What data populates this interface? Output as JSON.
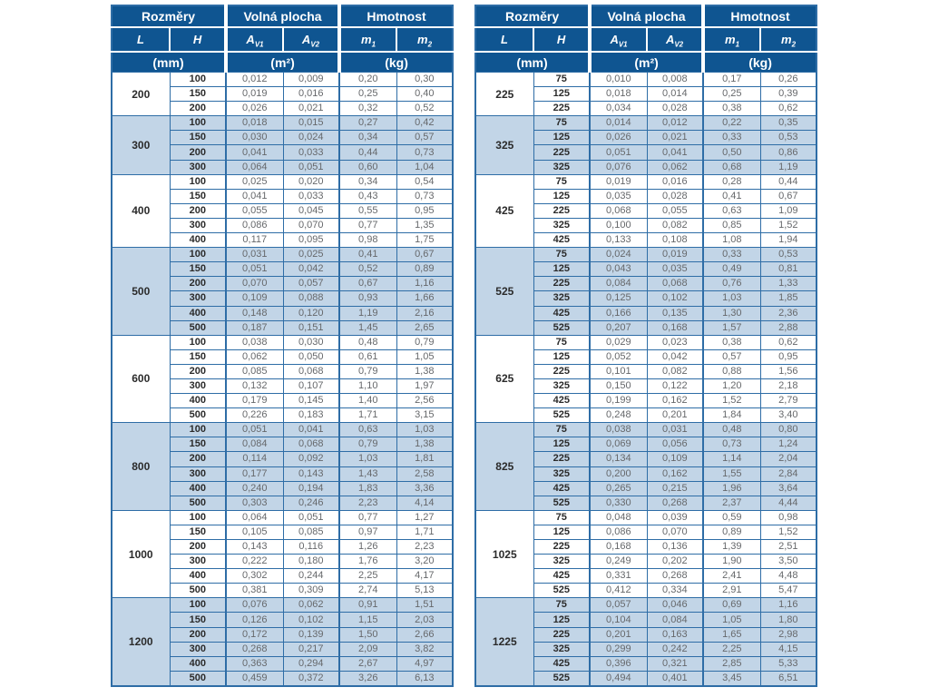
{
  "page": {
    "background": "#ffffff"
  },
  "colors": {
    "header_bg": "#0f5591",
    "band_blue": "#c2d5e7",
    "grid_blue": "#2e6da6",
    "header_text": "#ffffff",
    "value_text": "#66686b",
    "dimension_text": "#2b2b2b"
  },
  "header": {
    "group_dimensions": "Rozměry",
    "group_free_area": "Volná plocha",
    "group_weight": "Hmotnost",
    "col_L": "L",
    "col_H": "H",
    "col_av1": {
      "base": "A",
      "sub": "V1"
    },
    "col_av2": {
      "base": "A",
      "sub": "V2"
    },
    "col_m1": {
      "base": "m",
      "sub": "1"
    },
    "col_m2": {
      "base": "m",
      "sub": "2"
    },
    "unit_mm": "(mm)",
    "unit_m2": "(m²)",
    "unit_kg": "(kg)"
  },
  "tables": [
    {
      "name": "left-table",
      "groups": [
        {
          "L": "200",
          "rows": [
            [
              "100",
              "0,012",
              "0,009",
              "0,20",
              "0,30"
            ],
            [
              "150",
              "0,019",
              "0,016",
              "0,25",
              "0,40"
            ],
            [
              "200",
              "0,026",
              "0,021",
              "0,32",
              "0,52"
            ]
          ]
        },
        {
          "L": "300",
          "rows": [
            [
              "100",
              "0,018",
              "0,015",
              "0,27",
              "0,42"
            ],
            [
              "150",
              "0,030",
              "0,024",
              "0,34",
              "0,57"
            ],
            [
              "200",
              "0,041",
              "0,033",
              "0,44",
              "0,73"
            ],
            [
              "300",
              "0,064",
              "0,051",
              "0,60",
              "1,04"
            ]
          ]
        },
        {
          "L": "400",
          "rows": [
            [
              "100",
              "0,025",
              "0,020",
              "0,34",
              "0,54"
            ],
            [
              "150",
              "0,041",
              "0,033",
              "0,43",
              "0,73"
            ],
            [
              "200",
              "0,055",
              "0,045",
              "0,55",
              "0,95"
            ],
            [
              "300",
              "0,086",
              "0,070",
              "0,77",
              "1,35"
            ],
            [
              "400",
              "0,117",
              "0,095",
              "0,98",
              "1,75"
            ]
          ]
        },
        {
          "L": "500",
          "rows": [
            [
              "100",
              "0,031",
              "0,025",
              "0,41",
              "0,67"
            ],
            [
              "150",
              "0,051",
              "0,042",
              "0,52",
              "0,89"
            ],
            [
              "200",
              "0,070",
              "0,057",
              "0,67",
              "1,16"
            ],
            [
              "300",
              "0,109",
              "0,088",
              "0,93",
              "1,66"
            ],
            [
              "400",
              "0,148",
              "0,120",
              "1,19",
              "2,16"
            ],
            [
              "500",
              "0,187",
              "0,151",
              "1,45",
              "2,65"
            ]
          ]
        },
        {
          "L": "600",
          "rows": [
            [
              "100",
              "0,038",
              "0,030",
              "0,48",
              "0,79"
            ],
            [
              "150",
              "0,062",
              "0,050",
              "0,61",
              "1,05"
            ],
            [
              "200",
              "0,085",
              "0,068",
              "0,79",
              "1,38"
            ],
            [
              "300",
              "0,132",
              "0,107",
              "1,10",
              "1,97"
            ],
            [
              "400",
              "0,179",
              "0,145",
              "1,40",
              "2,56"
            ],
            [
              "500",
              "0,226",
              "0,183",
              "1,71",
              "3,15"
            ]
          ]
        },
        {
          "L": "800",
          "rows": [
            [
              "100",
              "0,051",
              "0,041",
              "0,63",
              "1,03"
            ],
            [
              "150",
              "0,084",
              "0,068",
              "0,79",
              "1,38"
            ],
            [
              "200",
              "0,114",
              "0,092",
              "1,03",
              "1,81"
            ],
            [
              "300",
              "0,177",
              "0,143",
              "1,43",
              "2,58"
            ],
            [
              "400",
              "0,240",
              "0,194",
              "1,83",
              "3,36"
            ],
            [
              "500",
              "0,303",
              "0,246",
              "2,23",
              "4,14"
            ]
          ]
        },
        {
          "L": "1000",
          "rows": [
            [
              "100",
              "0,064",
              "0,051",
              "0,77",
              "1,27"
            ],
            [
              "150",
              "0,105",
              "0,085",
              "0,97",
              "1,71"
            ],
            [
              "200",
              "0,143",
              "0,116",
              "1,26",
              "2,23"
            ],
            [
              "300",
              "0,222",
              "0,180",
              "1,76",
              "3,20"
            ],
            [
              "400",
              "0,302",
              "0,244",
              "2,25",
              "4,17"
            ],
            [
              "500",
              "0,381",
              "0,309",
              "2,74",
              "5,13"
            ]
          ]
        },
        {
          "L": "1200",
          "rows": [
            [
              "100",
              "0,076",
              "0,062",
              "0,91",
              "1,51"
            ],
            [
              "150",
              "0,126",
              "0,102",
              "1,15",
              "2,03"
            ],
            [
              "200",
              "0,172",
              "0,139",
              "1,50",
              "2,66"
            ],
            [
              "300",
              "0,268",
              "0,217",
              "2,09",
              "3,82"
            ],
            [
              "400",
              "0,363",
              "0,294",
              "2,67",
              "4,97"
            ],
            [
              "500",
              "0,459",
              "0,372",
              "3,26",
              "6,13"
            ]
          ]
        }
      ]
    },
    {
      "name": "right-table",
      "groups": [
        {
          "L": "225",
          "rows": [
            [
              "75",
              "0,010",
              "0,008",
              "0,17",
              "0,26"
            ],
            [
              "125",
              "0,018",
              "0,014",
              "0,25",
              "0,39"
            ],
            [
              "225",
              "0,034",
              "0,028",
              "0,38",
              "0,62"
            ]
          ]
        },
        {
          "L": "325",
          "rows": [
            [
              "75",
              "0,014",
              "0,012",
              "0,22",
              "0,35"
            ],
            [
              "125",
              "0,026",
              "0,021",
              "0,33",
              "0,53"
            ],
            [
              "225",
              "0,051",
              "0,041",
              "0,50",
              "0,86"
            ],
            [
              "325",
              "0,076",
              "0,062",
              "0,68",
              "1,19"
            ]
          ]
        },
        {
          "L": "425",
          "rows": [
            [
              "75",
              "0,019",
              "0,016",
              "0,28",
              "0,44"
            ],
            [
              "125",
              "0,035",
              "0,028",
              "0,41",
              "0,67"
            ],
            [
              "225",
              "0,068",
              "0,055",
              "0,63",
              "1,09"
            ],
            [
              "325",
              "0,100",
              "0,082",
              "0,85",
              "1,52"
            ],
            [
              "425",
              "0,133",
              "0,108",
              "1,08",
              "1,94"
            ]
          ]
        },
        {
          "L": "525",
          "rows": [
            [
              "75",
              "0,024",
              "0,019",
              "0,33",
              "0,53"
            ],
            [
              "125",
              "0,043",
              "0,035",
              "0,49",
              "0,81"
            ],
            [
              "225",
              "0,084",
              "0,068",
              "0,76",
              "1,33"
            ],
            [
              "325",
              "0,125",
              "0,102",
              "1,03",
              "1,85"
            ],
            [
              "425",
              "0,166",
              "0,135",
              "1,30",
              "2,36"
            ],
            [
              "525",
              "0,207",
              "0,168",
              "1,57",
              "2,88"
            ]
          ]
        },
        {
          "L": "625",
          "rows": [
            [
              "75",
              "0,029",
              "0,023",
              "0,38",
              "0,62"
            ],
            [
              "125",
              "0,052",
              "0,042",
              "0,57",
              "0,95"
            ],
            [
              "225",
              "0,101",
              "0,082",
              "0,88",
              "1,56"
            ],
            [
              "325",
              "0,150",
              "0,122",
              "1,20",
              "2,18"
            ],
            [
              "425",
              "0,199",
              "0,162",
              "1,52",
              "2,79"
            ],
            [
              "525",
              "0,248",
              "0,201",
              "1,84",
              "3,40"
            ]
          ]
        },
        {
          "L": "825",
          "rows": [
            [
              "75",
              "0,038",
              "0,031",
              "0,48",
              "0,80"
            ],
            [
              "125",
              "0,069",
              "0,056",
              "0,73",
              "1,24"
            ],
            [
              "225",
              "0,134",
              "0,109",
              "1,14",
              "2,04"
            ],
            [
              "325",
              "0,200",
              "0,162",
              "1,55",
              "2,84"
            ],
            [
              "425",
              "0,265",
              "0,215",
              "1,96",
              "3,64"
            ],
            [
              "525",
              "0,330",
              "0,268",
              "2,37",
              "4,44"
            ]
          ]
        },
        {
          "L": "1025",
          "rows": [
            [
              "75",
              "0,048",
              "0,039",
              "0,59",
              "0,98"
            ],
            [
              "125",
              "0,086",
              "0,070",
              "0,89",
              "1,52"
            ],
            [
              "225",
              "0,168",
              "0,136",
              "1,39",
              "2,51"
            ],
            [
              "325",
              "0,249",
              "0,202",
              "1,90",
              "3,50"
            ],
            [
              "425",
              "0,331",
              "0,268",
              "2,41",
              "4,48"
            ],
            [
              "525",
              "0,412",
              "0,334",
              "2,91",
              "5,47"
            ]
          ]
        },
        {
          "L": "1225",
          "rows": [
            [
              "75",
              "0,057",
              "0,046",
              "0,69",
              "1,16"
            ],
            [
              "125",
              "0,104",
              "0,084",
              "1,05",
              "1,80"
            ],
            [
              "225",
              "0,201",
              "0,163",
              "1,65",
              "2,98"
            ],
            [
              "325",
              "0,299",
              "0,242",
              "2,25",
              "4,15"
            ],
            [
              "425",
              "0,396",
              "0,321",
              "2,85",
              "5,33"
            ],
            [
              "525",
              "0,494",
              "0,401",
              "3,45",
              "6,51"
            ]
          ]
        }
      ]
    }
  ]
}
